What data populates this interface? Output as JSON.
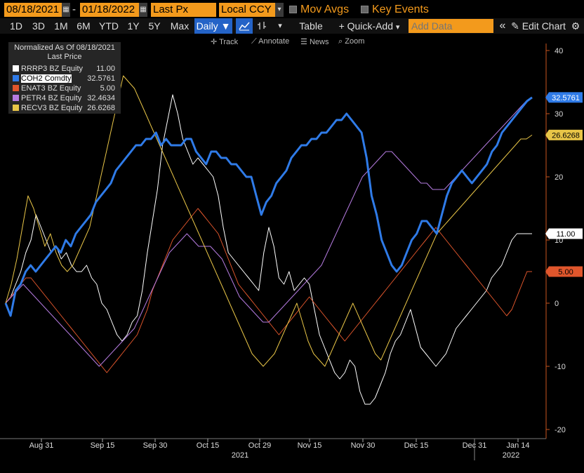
{
  "toolbar": {
    "start_date": "08/18/2021",
    "separator": "-",
    "end_date": "01/18/2022",
    "field": "Last Px",
    "currency": "Local CCY",
    "mov_avgs": "Mov Avgs",
    "key_events": "Key Events",
    "periods": [
      "1D",
      "3D",
      "1M",
      "6M",
      "YTD",
      "1Y",
      "5Y",
      "Max"
    ],
    "frequency": "Daily",
    "frequency_arrow": "▼",
    "table_label": "Table",
    "quick_add_label": "+ Quick-Add",
    "add_data_placeholder": "Add Data",
    "edit_chart_label": "Edit Chart",
    "collapse_icon": "«",
    "pencil_icon": "pencil-icon",
    "more_arrow": "▾"
  },
  "subtools": {
    "track": "Track",
    "annotate": "Annotate",
    "news": "News",
    "zoom": "Zoom"
  },
  "legend": {
    "title_line1": "Normalized As Of 08/18/2021",
    "title_line2": "Last Price"
  },
  "colors": {
    "background": "#000000",
    "accent_orange": "#f39a1c",
    "axis_orange": "#c8551e",
    "active_button": "#2463c7"
  },
  "chart_data": {
    "type": "line",
    "x_tick_labels": [
      "Aug 31",
      "Sep 15",
      "Sep 30",
      "Oct 15",
      "Oct 29",
      "Nov 15",
      "Nov 30",
      "Dec 15",
      "Dec 31",
      "Jan 14"
    ],
    "x_year_labels": [
      "2021",
      "2022"
    ],
    "ylim": [
      -21,
      41
    ],
    "yticks": [
      -20,
      -10,
      0,
      10,
      20,
      30,
      40
    ],
    "y_tick_labels": [
      "-20",
      "-10",
      "0",
      "10",
      "20",
      "30",
      "40"
    ],
    "grid": false,
    "legend_position": "top-left",
    "series": [
      {
        "name": "RRRP3 BZ Equity",
        "color": "#ffffff",
        "last": "11.00",
        "width": 1,
        "values": [
          0,
          1,
          3,
          5,
          8,
          10,
          14,
          12,
          10,
          8,
          9,
          7,
          8,
          6,
          5,
          5,
          6,
          4,
          3,
          0,
          -1,
          -3,
          -5,
          -6,
          -5,
          -3,
          -2,
          2,
          8,
          13,
          18,
          25,
          29,
          33,
          30,
          26,
          24,
          22,
          23,
          22,
          21,
          20,
          17,
          12,
          8,
          7,
          6,
          5,
          4,
          3,
          2,
          8,
          12,
          9,
          4,
          3,
          5,
          2,
          3,
          4,
          3,
          -1,
          -5,
          -7,
          -9,
          -11,
          -12,
          -11,
          -9,
          -10,
          -14,
          -16,
          -16,
          -15,
          -13,
          -11,
          -8,
          -6,
          -5,
          -3,
          -1,
          -4,
          -7,
          -8,
          -9,
          -10,
          -9,
          -8,
          -6,
          -4,
          -3,
          -2,
          -1,
          0,
          1,
          2,
          4,
          5,
          6,
          8,
          10,
          11,
          11,
          11,
          11
        ]
      },
      {
        "name": "COH2 Comdty",
        "color": "#2f7be8",
        "last": "32.5761",
        "width": 3,
        "values": [
          0,
          -2,
          2,
          3,
          5,
          6,
          5,
          6,
          7,
          8,
          9,
          8,
          10,
          9,
          11,
          12,
          13,
          14,
          16,
          17,
          18,
          19,
          21,
          22,
          23,
          24,
          25,
          25,
          26,
          26,
          27,
          25,
          26,
          25,
          25,
          25,
          26,
          26,
          24,
          23,
          22,
          24,
          24,
          23,
          23,
          22,
          22,
          21,
          20,
          20,
          17,
          14,
          16,
          17,
          19,
          20,
          21,
          23,
          24,
          25,
          25,
          26,
          26,
          27,
          27,
          28,
          29,
          29,
          30,
          29,
          28,
          27,
          23,
          17,
          14,
          10,
          8,
          6,
          5,
          6,
          8,
          10,
          11,
          13,
          13,
          12,
          11,
          14,
          17,
          19,
          20,
          21,
          20,
          19,
          20,
          21,
          22,
          24,
          25,
          27,
          28,
          29,
          30,
          31,
          32,
          32.5761
        ]
      },
      {
        "name": "ENAT3 BZ Equity",
        "color": "#e0562c",
        "last": "5.00",
        "width": 1,
        "values": [
          0,
          1,
          2,
          3,
          4,
          4,
          3,
          2,
          1,
          0,
          -1,
          -2,
          -3,
          -4,
          -5,
          -6,
          -7,
          -8,
          -9,
          -10,
          -11,
          -10,
          -9,
          -8,
          -7,
          -6,
          -5,
          -3,
          -1,
          2,
          4,
          6,
          8,
          10,
          11,
          12,
          13,
          14,
          15,
          14,
          13,
          12,
          11,
          9,
          7,
          5,
          3,
          2,
          1,
          0,
          -1,
          -2,
          -3,
          -4,
          -5,
          -4,
          -3,
          -2,
          -1,
          0,
          1,
          0,
          -1,
          -2,
          -3,
          -4,
          -5,
          -6,
          -5,
          -4,
          -3,
          -2,
          -1,
          0,
          1,
          2,
          3,
          4,
          5,
          6,
          7,
          8,
          9,
          10,
          11,
          12,
          11,
          10,
          9,
          8,
          7,
          6,
          5,
          4,
          3,
          2,
          1,
          0,
          -1,
          -2,
          -1,
          1,
          3,
          5,
          5.0
        ]
      },
      {
        "name": "PETR4 BZ Equity",
        "color": "#b57be0",
        "last": "32.4634",
        "width": 1,
        "values": [
          0,
          1,
          2,
          3,
          2,
          1,
          0,
          -1,
          -2,
          -3,
          -4,
          -5,
          -6,
          -7,
          -8,
          -9,
          -10,
          -9,
          -8,
          -7,
          -6,
          -5,
          -4,
          -2,
          0,
          2,
          4,
          6,
          8,
          9,
          10,
          11,
          10,
          9,
          9,
          9,
          8,
          7,
          5,
          3,
          1,
          0,
          -1,
          -2,
          -3,
          -3,
          -2,
          -1,
          0,
          1,
          2,
          3,
          4,
          5,
          6,
          8,
          10,
          12,
          14,
          16,
          18,
          20,
          21,
          22,
          23,
          24,
          24,
          23,
          22,
          21,
          20,
          19,
          19,
          18,
          18,
          18,
          19,
          20,
          21,
          22,
          23,
          24,
          25,
          26,
          27,
          28,
          29,
          30,
          31,
          32,
          32.4634
        ]
      },
      {
        "name": "RECV3 BZ Equity",
        "color": "#e8c547",
        "last": "26.6268",
        "width": 1,
        "values": [
          0,
          3,
          7,
          12,
          17,
          15,
          12,
          9,
          11,
          8,
          6,
          5,
          6,
          8,
          10,
          12,
          16,
          20,
          24,
          28,
          32,
          36,
          35,
          34,
          32,
          30,
          28,
          26,
          24,
          22,
          20,
          18,
          16,
          14,
          12,
          10,
          8,
          6,
          4,
          2,
          0,
          -2,
          -4,
          -6,
          -8,
          -9,
          -10,
          -9,
          -8,
          -6,
          -4,
          -2,
          0,
          -3,
          -6,
          -8,
          -9,
          -10,
          -8,
          -6,
          -4,
          -2,
          0,
          -2,
          -4,
          -6,
          -8,
          -9,
          -7,
          -5,
          -3,
          -1,
          1,
          3,
          5,
          7,
          9,
          11,
          12,
          13,
          14,
          15,
          16,
          17,
          18,
          19,
          20,
          21,
          22,
          23,
          24,
          25,
          26,
          26,
          26.6268
        ]
      }
    ]
  }
}
